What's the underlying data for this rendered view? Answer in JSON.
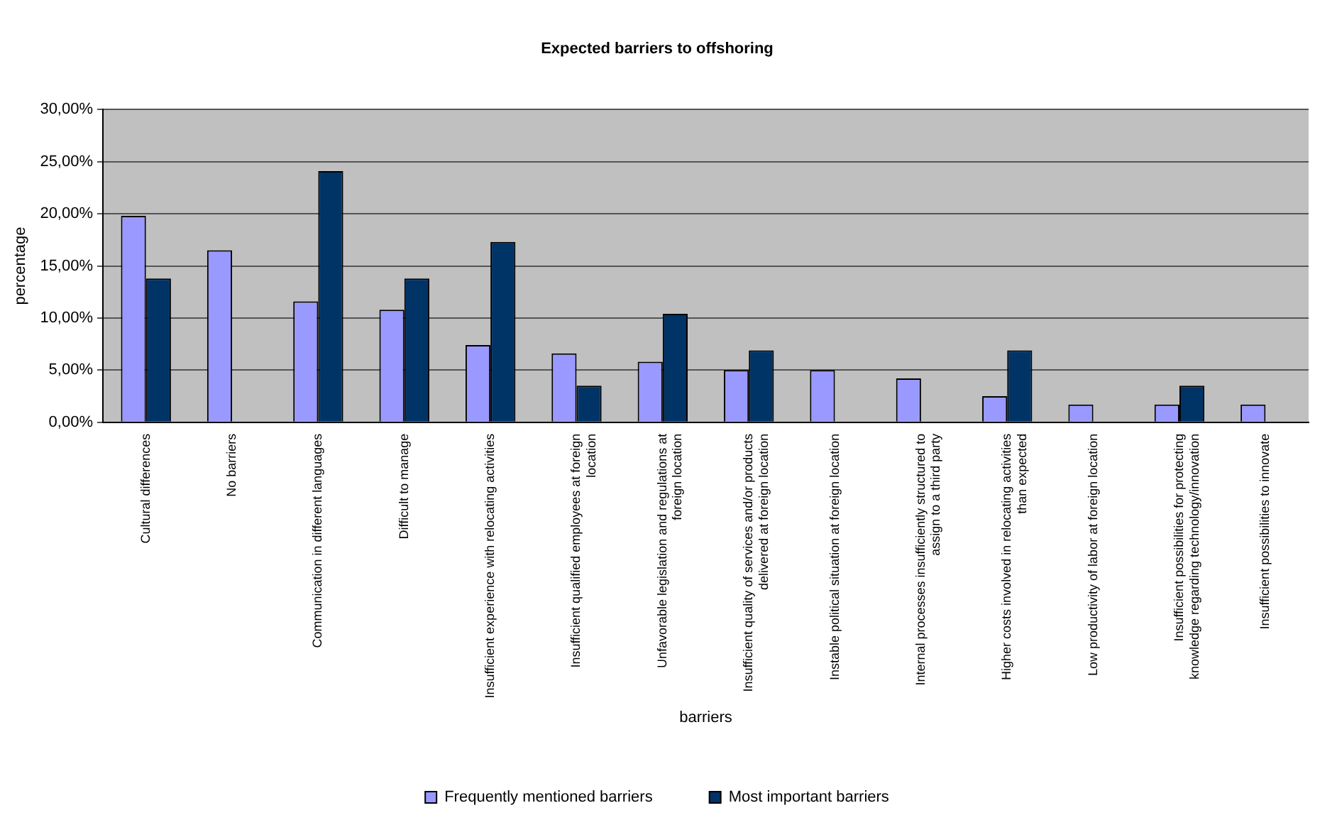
{
  "chart_data": {
    "type": "bar",
    "title": "Expected barriers to offshoring",
    "xlabel": "barriers",
    "ylabel": "percentage",
    "categories": [
      "Cultural differences",
      "No barriers",
      "Communication in different languages",
      "Difficult to manage",
      "Insufficient experience with relocating activities",
      "Insufficient qualified employees at foreign\nlocation",
      "Unfavorable legislation and regulations at\nforeign location",
      "Insufficient quality of services and/or products\ndelivered at foreign location",
      "Instable political situation at foreign location",
      "Internal processes insufficiently structured to\nassign to a third party",
      "Higher costs involved in relocating activities\nthan expected",
      "Low productivity of labor at foreign location",
      "Insufficient possibilities for protecting\nknowledge regarding technology/innovation",
      "Insufficient possibilities to innovate"
    ],
    "series": [
      {
        "name": "Frequently mentioned barriers",
        "color": "#9999ff",
        "values": [
          19.8,
          16.5,
          11.6,
          10.8,
          7.4,
          6.6,
          5.8,
          5.0,
          5.0,
          4.2,
          2.5,
          1.7,
          1.7,
          1.7
        ]
      },
      {
        "name": "Most important barriers",
        "color": "#003366",
        "values": [
          13.8,
          null,
          24.1,
          13.8,
          17.3,
          3.5,
          10.4,
          6.9,
          null,
          null,
          6.9,
          null,
          3.5,
          null
        ]
      }
    ],
    "ylim": [
      0,
      30
    ],
    "yticks": [
      {
        "value": 0,
        "label": "0,00%"
      },
      {
        "value": 5,
        "label": "5,00%"
      },
      {
        "value": 10,
        "label": "10,00%"
      },
      {
        "value": 15,
        "label": "15,00%"
      },
      {
        "value": 20,
        "label": "20,00%"
      },
      {
        "value": 25,
        "label": "25,00%"
      },
      {
        "value": 30,
        "label": "30,00%"
      }
    ],
    "grid": "y",
    "legend": "bottom"
  }
}
